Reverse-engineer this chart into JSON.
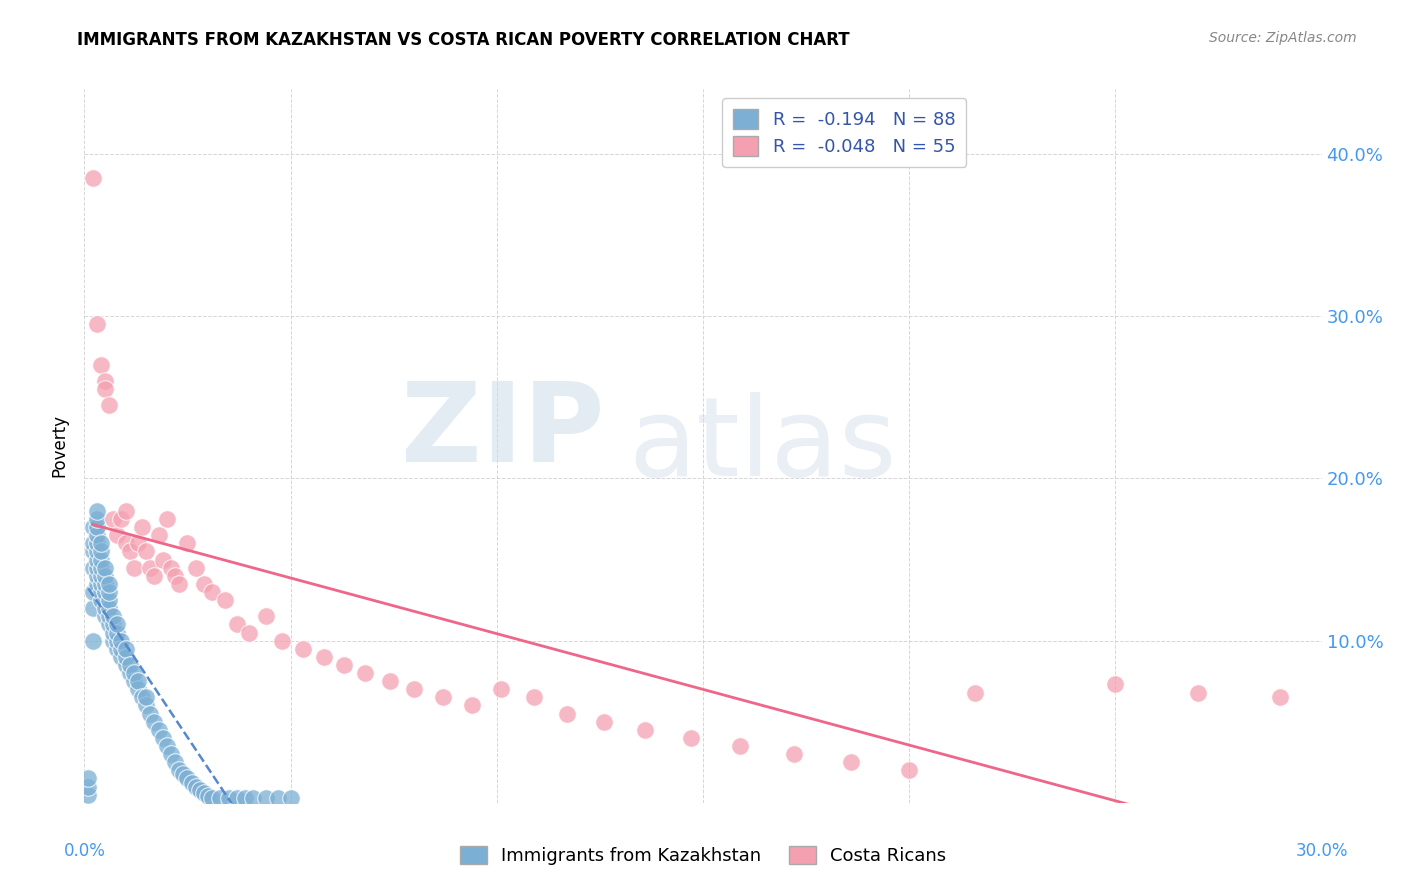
{
  "title": "IMMIGRANTS FROM KAZAKHSTAN VS COSTA RICAN POVERTY CORRELATION CHART",
  "source": "Source: ZipAtlas.com",
  "ylabel": "Poverty",
  "R1": "-0.194",
  "N1": "88",
  "R2": "-0.048",
  "N2": "55",
  "color_blue": "#7BAFD4",
  "color_pink": "#F4A0B0",
  "trendline_blue": "#5588CC",
  "trendline_pink": "#EE6688",
  "background_color": "#FFFFFF",
  "x_range": [
    0.0,
    0.3
  ],
  "y_range": [
    0.0,
    0.44
  ],
  "x_ticks": [
    0.0,
    0.05,
    0.1,
    0.15,
    0.2,
    0.25,
    0.3
  ],
  "y_ticks": [
    0.1,
    0.2,
    0.3,
    0.4
  ],
  "y_tick_labels": [
    "10.0%",
    "20.0%",
    "30.0%",
    "40.0%"
  ],
  "legend_label1": "Immigrants from Kazakhstan",
  "legend_label2": "Costa Ricans",
  "scatter_blue_x": [
    0.001,
    0.001,
    0.001,
    0.002,
    0.002,
    0.002,
    0.002,
    0.002,
    0.002,
    0.002,
    0.003,
    0.003,
    0.003,
    0.003,
    0.003,
    0.003,
    0.003,
    0.003,
    0.003,
    0.003,
    0.004,
    0.004,
    0.004,
    0.004,
    0.004,
    0.004,
    0.004,
    0.004,
    0.005,
    0.005,
    0.005,
    0.005,
    0.005,
    0.005,
    0.005,
    0.006,
    0.006,
    0.006,
    0.006,
    0.006,
    0.006,
    0.007,
    0.007,
    0.007,
    0.007,
    0.008,
    0.008,
    0.008,
    0.008,
    0.009,
    0.009,
    0.009,
    0.01,
    0.01,
    0.01,
    0.011,
    0.011,
    0.012,
    0.012,
    0.013,
    0.013,
    0.014,
    0.015,
    0.015,
    0.016,
    0.017,
    0.018,
    0.019,
    0.02,
    0.021,
    0.022,
    0.023,
    0.024,
    0.025,
    0.026,
    0.027,
    0.028,
    0.029,
    0.03,
    0.031,
    0.033,
    0.035,
    0.037,
    0.039,
    0.041,
    0.044,
    0.047,
    0.05
  ],
  "scatter_blue_y": [
    0.005,
    0.01,
    0.015,
    0.1,
    0.12,
    0.13,
    0.145,
    0.155,
    0.16,
    0.17,
    0.135,
    0.14,
    0.145,
    0.15,
    0.155,
    0.16,
    0.165,
    0.17,
    0.175,
    0.18,
    0.125,
    0.13,
    0.135,
    0.14,
    0.145,
    0.15,
    0.155,
    0.16,
    0.115,
    0.12,
    0.125,
    0.13,
    0.135,
    0.14,
    0.145,
    0.11,
    0.115,
    0.12,
    0.125,
    0.13,
    0.135,
    0.1,
    0.105,
    0.11,
    0.115,
    0.095,
    0.1,
    0.105,
    0.11,
    0.09,
    0.095,
    0.1,
    0.085,
    0.09,
    0.095,
    0.08,
    0.085,
    0.075,
    0.08,
    0.07,
    0.075,
    0.065,
    0.06,
    0.065,
    0.055,
    0.05,
    0.045,
    0.04,
    0.035,
    0.03,
    0.025,
    0.02,
    0.018,
    0.015,
    0.012,
    0.01,
    0.008,
    0.006,
    0.004,
    0.003,
    0.003,
    0.003,
    0.003,
    0.003,
    0.003,
    0.003,
    0.003,
    0.003
  ],
  "scatter_pink_x": [
    0.002,
    0.003,
    0.004,
    0.005,
    0.005,
    0.006,
    0.007,
    0.008,
    0.009,
    0.01,
    0.01,
    0.011,
    0.012,
    0.013,
    0.014,
    0.015,
    0.016,
    0.017,
    0.018,
    0.019,
    0.02,
    0.021,
    0.022,
    0.023,
    0.025,
    0.027,
    0.029,
    0.031,
    0.034,
    0.037,
    0.04,
    0.044,
    0.048,
    0.053,
    0.058,
    0.063,
    0.068,
    0.074,
    0.08,
    0.087,
    0.094,
    0.101,
    0.109,
    0.117,
    0.126,
    0.136,
    0.147,
    0.159,
    0.172,
    0.186,
    0.2,
    0.216,
    0.25,
    0.27,
    0.29
  ],
  "scatter_pink_y": [
    0.385,
    0.295,
    0.27,
    0.26,
    0.255,
    0.245,
    0.175,
    0.165,
    0.175,
    0.18,
    0.16,
    0.155,
    0.145,
    0.16,
    0.17,
    0.155,
    0.145,
    0.14,
    0.165,
    0.15,
    0.175,
    0.145,
    0.14,
    0.135,
    0.16,
    0.145,
    0.135,
    0.13,
    0.125,
    0.11,
    0.105,
    0.115,
    0.1,
    0.095,
    0.09,
    0.085,
    0.08,
    0.075,
    0.07,
    0.065,
    0.06,
    0.07,
    0.065,
    0.055,
    0.05,
    0.045,
    0.04,
    0.035,
    0.03,
    0.025,
    0.02,
    0.068,
    0.073,
    0.068,
    0.065
  ]
}
